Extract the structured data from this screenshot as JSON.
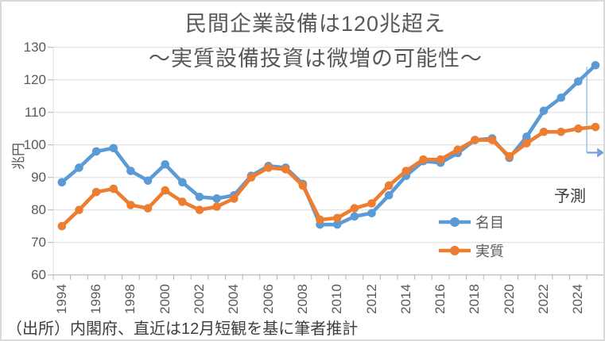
{
  "title": {
    "line1": "民間企業設備は120兆超え",
    "line2": "～実質設備投資は微増の可能性～"
  },
  "source_note": "（出所）内閣府、直近は12月短観を基に筆者推計",
  "annotations": {
    "forecast_label": "予測"
  },
  "y_axis": {
    "title": "兆円",
    "min": 60,
    "max": 130,
    "step": 10,
    "tick_labels": [
      "60",
      "70",
      "80",
      "90",
      "100",
      "110",
      "120",
      "130"
    ]
  },
  "x_axis": {
    "tick_labels": [
      "1994",
      "1996",
      "1998",
      "2000",
      "2002",
      "2004",
      "2006",
      "2008",
      "2010",
      "2012",
      "2014",
      "2016",
      "2018",
      "2020",
      "2022",
      "2024"
    ]
  },
  "legend": {
    "items": [
      {
        "label": "名目",
        "color": "#5B9BD5"
      },
      {
        "label": "実質",
        "color": "#ED7D31"
      }
    ],
    "position": "inside-right-bottom"
  },
  "colors": {
    "nominal_line": "#5B9BD5",
    "real_line": "#ED7D31",
    "gridline": "#DCDCDC",
    "axis_line": "#B3B3B3",
    "forecast_divider": "#A5C7E9",
    "forecast_arrow": "#74A2D4",
    "text": "#595959"
  },
  "chart_data": {
    "type": "line",
    "x": [
      1994,
      1995,
      1996,
      1997,
      1998,
      1999,
      2000,
      2001,
      2002,
      2003,
      2004,
      2005,
      2006,
      2007,
      2008,
      2009,
      2010,
      2011,
      2012,
      2013,
      2014,
      2015,
      2016,
      2017,
      2018,
      2019,
      2020,
      2021,
      2022,
      2023,
      2024,
      2025
    ],
    "series": [
      {
        "name": "名目",
        "color": "#5B9BD5",
        "values": [
          88.5,
          93,
          98,
          99,
          92,
          89,
          94,
          88.5,
          84,
          83.5,
          84.5,
          90.5,
          93.5,
          93,
          88,
          75.5,
          75.5,
          78,
          79,
          84.5,
          90.5,
          95,
          94.5,
          97.5,
          101.5,
          102,
          96,
          102.5,
          110.5,
          114.5,
          119.5,
          124.5
        ]
      },
      {
        "name": "実質",
        "color": "#ED7D31",
        "values": [
          75,
          80,
          85.5,
          86.5,
          81.5,
          80.5,
          86,
          82.5,
          80,
          81,
          83.5,
          90,
          93,
          92.5,
          87.5,
          77,
          77.5,
          80.5,
          82,
          87.5,
          92,
          95.5,
          95.5,
          98.5,
          101.5,
          101.5,
          96.5,
          100.5,
          104,
          104,
          105,
          105.5
        ]
      }
    ],
    "title": "民間企業設備は120兆超え ～実質設備投資は微増の可能性～",
    "xlabel": "",
    "ylabel": "兆円",
    "ylim": [
      60,
      130
    ],
    "grid": true,
    "legend_position": "inside-right-bottom",
    "forecast_divider_between": [
      2024,
      2025
    ],
    "forecast_note": "予測"
  }
}
